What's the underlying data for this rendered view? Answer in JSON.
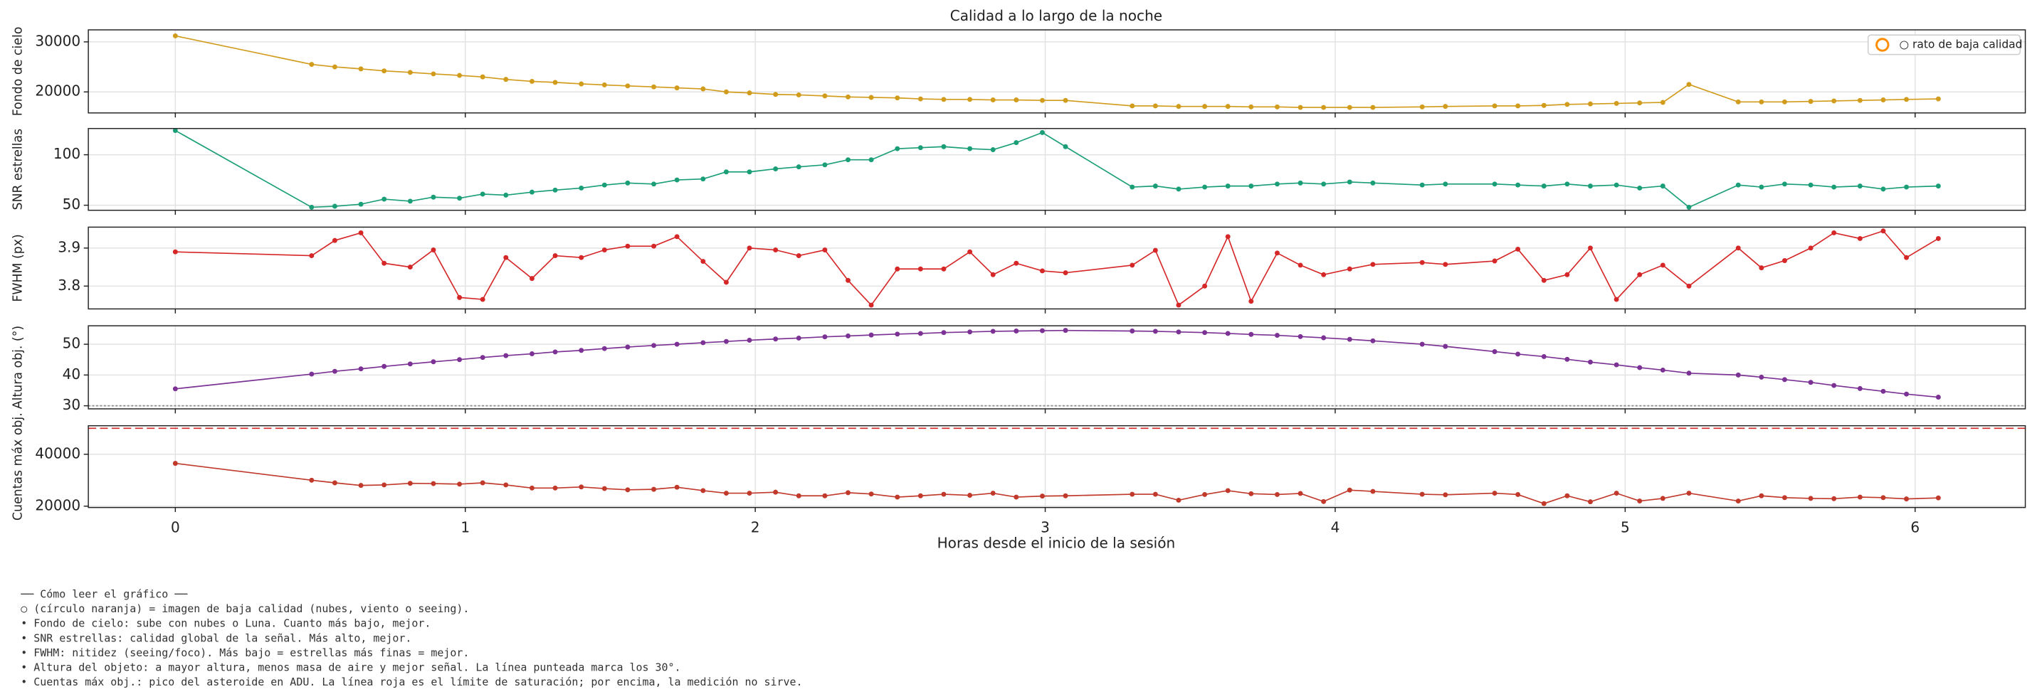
{
  "chart_data": {
    "type": "line",
    "title": "Calidad a lo largo de la noche",
    "xlabel": "Horas desde el inicio de la sesión",
    "x": [
      0,
      0.47,
      0.55,
      0.64,
      0.72,
      0.81,
      0.89,
      0.98,
      1.06,
      1.14,
      1.23,
      1.31,
      1.4,
      1.48,
      1.56,
      1.65,
      1.73,
      1.82,
      1.9,
      1.98,
      2.07,
      2.15,
      2.24,
      2.32,
      2.4,
      2.49,
      2.57,
      2.65,
      2.74,
      2.82,
      2.9,
      2.99,
      3.07,
      3.3,
      3.38,
      3.46,
      3.55,
      3.63,
      3.71,
      3.8,
      3.88,
      3.96,
      4.05,
      4.13,
      4.3,
      4.38,
      4.55,
      4.63,
      4.72,
      4.8,
      4.88,
      4.97,
      5.05,
      5.13,
      5.22,
      5.39,
      5.47,
      5.55,
      5.64,
      5.72,
      5.81,
      5.89,
      5.97,
      6.08
    ],
    "xlim": [
      -0.3,
      6.38
    ],
    "xticks": [
      0,
      1,
      2,
      3,
      4,
      5,
      6
    ],
    "grid": true,
    "legend": {
      "corner": "upper right",
      "entries": [
        {
          "label": "○ rato de baja calidad",
          "color": "#ff8c00"
        }
      ]
    },
    "panels": [
      {
        "ylabel": "Fondo de cielo",
        "color": "#d19b1b",
        "ylim": [
          15800,
          32400
        ],
        "yticks": [
          20000,
          30000
        ],
        "values": [
          31200,
          25500,
          25000,
          24600,
          24200,
          23900,
          23600,
          23300,
          23000,
          22500,
          22100,
          21900,
          21600,
          21400,
          21200,
          21000,
          20800,
          20600,
          20000,
          19800,
          19500,
          19400,
          19200,
          19000,
          18900,
          18800,
          18600,
          18500,
          18500,
          18400,
          18400,
          18300,
          18300,
          17200,
          17200,
          17100,
          17100,
          17100,
          17000,
          17000,
          16900,
          16900,
          16900,
          16900,
          17000,
          17100,
          17200,
          17200,
          17300,
          17500,
          17600,
          17700,
          17800,
          17900,
          21500,
          18000,
          18000,
          18000,
          18100,
          18200,
          18300,
          18400,
          18500,
          18600
        ]
      },
      {
        "ylabel": "SNR estrellas",
        "color": "#1a9e77",
        "ylim": [
          45,
          126
        ],
        "yticks": [
          50,
          100
        ],
        "values": [
          124,
          48,
          49,
          51,
          56,
          54,
          58,
          57,
          61,
          60,
          63,
          65,
          67,
          70,
          72,
          71,
          75,
          76,
          83,
          83,
          86,
          88,
          90,
          95,
          95,
          106,
          107,
          108,
          106,
          105,
          112,
          122,
          108,
          68,
          69,
          66,
          68,
          69,
          69,
          71,
          72,
          71,
          73,
          72,
          70,
          71,
          71,
          70,
          69,
          71,
          69,
          70,
          67,
          69,
          48,
          70,
          68,
          71,
          70,
          68,
          69,
          66,
          68,
          69
        ]
      },
      {
        "ylabel": "FWHM (px)",
        "color": "#d62728",
        "ylim": [
          3.74,
          3.955
        ],
        "yticks": [
          3.8,
          3.9
        ],
        "values": [
          3.89,
          3.88,
          3.92,
          3.94,
          3.86,
          3.85,
          3.895,
          3.77,
          3.765,
          3.875,
          3.82,
          3.88,
          3.875,
          3.895,
          3.905,
          3.905,
          3.93,
          3.865,
          3.81,
          3.9,
          3.895,
          3.88,
          3.895,
          3.815,
          3.75,
          3.845,
          3.845,
          3.845,
          3.89,
          3.83,
          3.86,
          3.84,
          3.835,
          3.855,
          3.894,
          3.75,
          3.8,
          3.93,
          3.76,
          3.887,
          3.855,
          3.83,
          3.845,
          3.857,
          3.862,
          3.857,
          3.866,
          3.897,
          3.815,
          3.83,
          3.9,
          3.765,
          3.83,
          3.855,
          3.8,
          3.9,
          3.848,
          3.867,
          3.9,
          3.94,
          3.925,
          3.945,
          3.875,
          3.925
        ]
      },
      {
        "ylabel": "Altura obj. (°)",
        "color": "#7b3294",
        "ylim": [
          29,
          56
        ],
        "yticks": [
          30,
          40,
          50
        ],
        "hline": {
          "value": 30,
          "color": "#888888",
          "style": "dotted"
        },
        "values": [
          35.5,
          40.3,
          41.2,
          42.0,
          42.8,
          43.6,
          44.3,
          45.0,
          45.7,
          46.3,
          46.9,
          47.5,
          48.0,
          48.6,
          49.1,
          49.6,
          50.0,
          50.5,
          50.9,
          51.3,
          51.7,
          52.0,
          52.4,
          52.7,
          53.0,
          53.3,
          53.5,
          53.8,
          54.0,
          54.2,
          54.3,
          54.4,
          54.5,
          54.3,
          54.2,
          54.0,
          53.8,
          53.5,
          53.2,
          52.9,
          52.5,
          52.1,
          51.6,
          51.1,
          50.0,
          49.3,
          47.6,
          46.8,
          46.0,
          45.1,
          44.2,
          43.3,
          42.4,
          41.6,
          40.6,
          40.0,
          39.3,
          38.5,
          37.6,
          36.6,
          35.6,
          34.7,
          33.8,
          32.8
        ]
      },
      {
        "ylabel": "Cuentas máx obj.",
        "color": "#c0392b",
        "ylim": [
          19500,
          51000
        ],
        "yticks": [
          20000,
          40000
        ],
        "hline": {
          "value": 50000,
          "color": "#d62728",
          "style": "dashed"
        },
        "values": [
          36500,
          30000,
          29000,
          28000,
          28200,
          28800,
          28700,
          28500,
          29000,
          28200,
          27000,
          27000,
          27400,
          26800,
          26300,
          26500,
          27300,
          26000,
          25000,
          25000,
          25400,
          24000,
          24000,
          25200,
          24700,
          23500,
          24000,
          24600,
          24200,
          25000,
          23500,
          23900,
          24000,
          24600,
          24600,
          22300,
          24500,
          26000,
          24800,
          24500,
          24900,
          21800,
          26200,
          25700,
          24600,
          24400,
          25000,
          24500,
          21000,
          24000,
          21700,
          25000,
          22000,
          23000,
          25000,
          22000,
          24000,
          23300,
          23000,
          22900,
          23500,
          23300,
          22800,
          23200
        ]
      }
    ],
    "notes": {
      "heading": "── Cómo leer el gráfico ──",
      "lines": [
        "○ (círculo naranja) = imagen de baja calidad (nubes, viento o seeing).",
        "• Fondo de cielo: sube con nubes o Luna. Cuanto más bajo, mejor.",
        "• SNR estrellas: calidad global de la señal. Más alto, mejor.",
        "• FWHM: nitidez (seeing/foco). Más bajo = estrellas más finas = mejor.",
        "• Altura del objeto: a mayor altura, menos masa de aire y mejor señal. La línea punteada marca los 30°.",
        "• Cuentas máx obj.: pico del asteroide en ADU. La línea roja es el límite de saturación; por encima, la medición no sirve."
      ]
    }
  }
}
